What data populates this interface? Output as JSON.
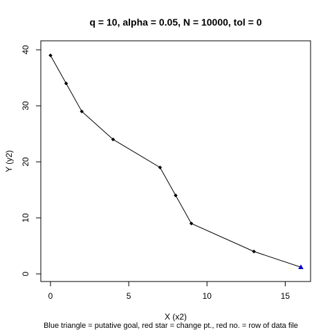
{
  "chart_data": {
    "type": "line",
    "title": "q = 10, alpha = 0.05, N = 10000, tol = 0",
    "xlabel": "X (x2)",
    "ylabel": "Y (y2)",
    "caption": "Blue triangle = putative goal, red star = change pt., red no. = row of data file",
    "xlim": [
      0,
      16
    ],
    "ylim": [
      0,
      40
    ],
    "xticks": [
      0,
      5,
      10,
      15
    ],
    "yticks": [
      0,
      10,
      20,
      30,
      40
    ],
    "grid": false,
    "series": [
      {
        "x": [
          0,
          1,
          2,
          4,
          7,
          8,
          9,
          13,
          16
        ],
        "y": [
          39,
          34,
          29,
          24,
          19,
          14,
          9,
          4,
          1.2
        ]
      }
    ],
    "goal_point": {
      "x": 16,
      "y": 1.2
    },
    "colors": {
      "line": "#000000",
      "point": "#000000",
      "goal": "#0000cc"
    }
  }
}
